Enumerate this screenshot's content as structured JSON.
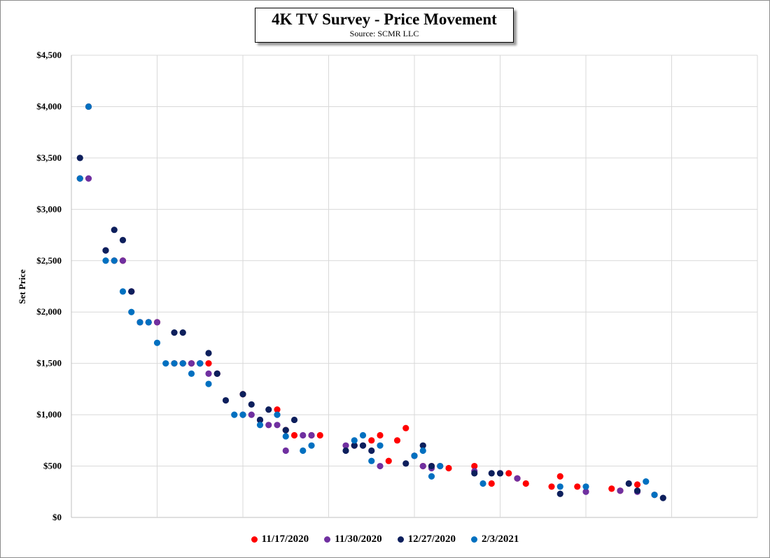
{
  "chart_data": {
    "type": "scatter",
    "title": "4K TV Survey - Price Movement",
    "subtitle": "Source: SCMR LLC",
    "xlabel": "",
    "ylabel": "Set Price",
    "ylim": [
      0,
      4500
    ],
    "xlim": [
      0,
      80
    ],
    "y_ticks": [
      "$0",
      "$500",
      "$1,000",
      "$1,500",
      "$2,000",
      "$2,500",
      "$3,000",
      "$3,500",
      "$4,000",
      "$4,500"
    ],
    "y_tick_values": [
      0,
      500,
      1000,
      1500,
      2000,
      2500,
      3000,
      3500,
      4000,
      4500
    ],
    "x_gridlines": [
      10,
      20,
      30,
      40,
      50,
      60,
      70,
      80
    ],
    "grid": true,
    "legend_position": "bottom",
    "series": [
      {
        "name": "11/17/2020",
        "color": "#ff0000",
        "points": [
          [
            1,
            3300
          ],
          [
            2,
            4000
          ],
          [
            5,
            2500
          ],
          [
            6,
            2500
          ],
          [
            7,
            2200
          ],
          [
            8,
            1900
          ],
          [
            9,
            1900
          ],
          [
            10,
            1900
          ],
          [
            12,
            1500
          ],
          [
            13,
            1500
          ],
          [
            14,
            1500
          ],
          [
            16,
            1500
          ],
          [
            17,
            1400
          ],
          [
            20,
            1200
          ],
          [
            24,
            1050
          ],
          [
            25,
            850
          ],
          [
            26,
            800
          ],
          [
            28,
            800
          ],
          [
            29,
            800
          ],
          [
            33,
            700
          ],
          [
            35,
            750
          ],
          [
            36,
            800
          ],
          [
            37,
            550
          ],
          [
            38,
            750
          ],
          [
            39,
            870
          ],
          [
            40,
            600
          ],
          [
            41,
            500
          ],
          [
            42,
            500
          ],
          [
            43,
            500
          ],
          [
            44,
            480
          ],
          [
            47,
            500
          ],
          [
            49,
            330
          ],
          [
            51,
            430
          ],
          [
            52,
            380
          ],
          [
            53,
            330
          ],
          [
            56,
            300
          ],
          [
            57,
            400
          ],
          [
            59,
            300
          ],
          [
            63,
            280
          ],
          [
            64,
            260
          ],
          [
            66,
            320
          ],
          [
            68,
            220
          ]
        ]
      },
      {
        "name": "11/30/2020",
        "color": "#7030a0",
        "points": [
          [
            2,
            3300
          ],
          [
            4,
            2600
          ],
          [
            6,
            2500
          ],
          [
            7,
            2200
          ],
          [
            8,
            1900
          ],
          [
            9,
            1900
          ],
          [
            10,
            1900
          ],
          [
            13,
            1500
          ],
          [
            14,
            1500
          ],
          [
            15,
            1500
          ],
          [
            16,
            1400
          ],
          [
            17,
            1400
          ],
          [
            20,
            1000
          ],
          [
            21,
            1000
          ],
          [
            22,
            950
          ],
          [
            23,
            900
          ],
          [
            24,
            900
          ],
          [
            25,
            650
          ],
          [
            27,
            800
          ],
          [
            28,
            800
          ],
          [
            32,
            700
          ],
          [
            34,
            700
          ],
          [
            36,
            500
          ],
          [
            40,
            600
          ],
          [
            41,
            500
          ],
          [
            42,
            480
          ],
          [
            47,
            450
          ],
          [
            50,
            430
          ],
          [
            52,
            380
          ],
          [
            60,
            250
          ],
          [
            64,
            260
          ],
          [
            66,
            250
          ]
        ]
      },
      {
        "name": "12/27/2020",
        "color": "#0d1f5c",
        "points": [
          [
            1,
            3500
          ],
          [
            4,
            2600
          ],
          [
            5,
            2800
          ],
          [
            6,
            2700
          ],
          [
            7,
            2200
          ],
          [
            12,
            1800
          ],
          [
            13,
            1800
          ],
          [
            15,
            1500
          ],
          [
            16,
            1600
          ],
          [
            17,
            1400
          ],
          [
            18,
            1140
          ],
          [
            20,
            1200
          ],
          [
            21,
            1100
          ],
          [
            22,
            950
          ],
          [
            23,
            1050
          ],
          [
            25,
            850
          ],
          [
            26,
            950
          ],
          [
            32,
            650
          ],
          [
            33,
            700
          ],
          [
            34,
            700
          ],
          [
            35,
            650
          ],
          [
            39,
            525
          ],
          [
            41,
            700
          ],
          [
            42,
            500
          ],
          [
            47,
            430
          ],
          [
            49,
            430
          ],
          [
            50,
            430
          ],
          [
            57,
            230
          ],
          [
            65,
            330
          ],
          [
            66,
            260
          ],
          [
            69,
            190
          ]
        ]
      },
      {
        "name": "2/3/2021",
        "color": "#0070c0",
        "points": [
          [
            1,
            3300
          ],
          [
            2,
            4000
          ],
          [
            4,
            2500
          ],
          [
            5,
            2500
          ],
          [
            6,
            2200
          ],
          [
            7,
            2000
          ],
          [
            8,
            1900
          ],
          [
            9,
            1900
          ],
          [
            10,
            1700
          ],
          [
            11,
            1500
          ],
          [
            12,
            1500
          ],
          [
            13,
            1500
          ],
          [
            14,
            1400
          ],
          [
            15,
            1500
          ],
          [
            16,
            1300
          ],
          [
            19,
            1000
          ],
          [
            20,
            1000
          ],
          [
            22,
            900
          ],
          [
            24,
            1000
          ],
          [
            25,
            790
          ],
          [
            27,
            650
          ],
          [
            28,
            700
          ],
          [
            33,
            750
          ],
          [
            34,
            800
          ],
          [
            35,
            550
          ],
          [
            36,
            700
          ],
          [
            40,
            600
          ],
          [
            41,
            650
          ],
          [
            42,
            400
          ],
          [
            43,
            500
          ],
          [
            48,
            330
          ],
          [
            57,
            300
          ],
          [
            60,
            300
          ],
          [
            67,
            350
          ],
          [
            68,
            220
          ]
        ]
      }
    ]
  }
}
